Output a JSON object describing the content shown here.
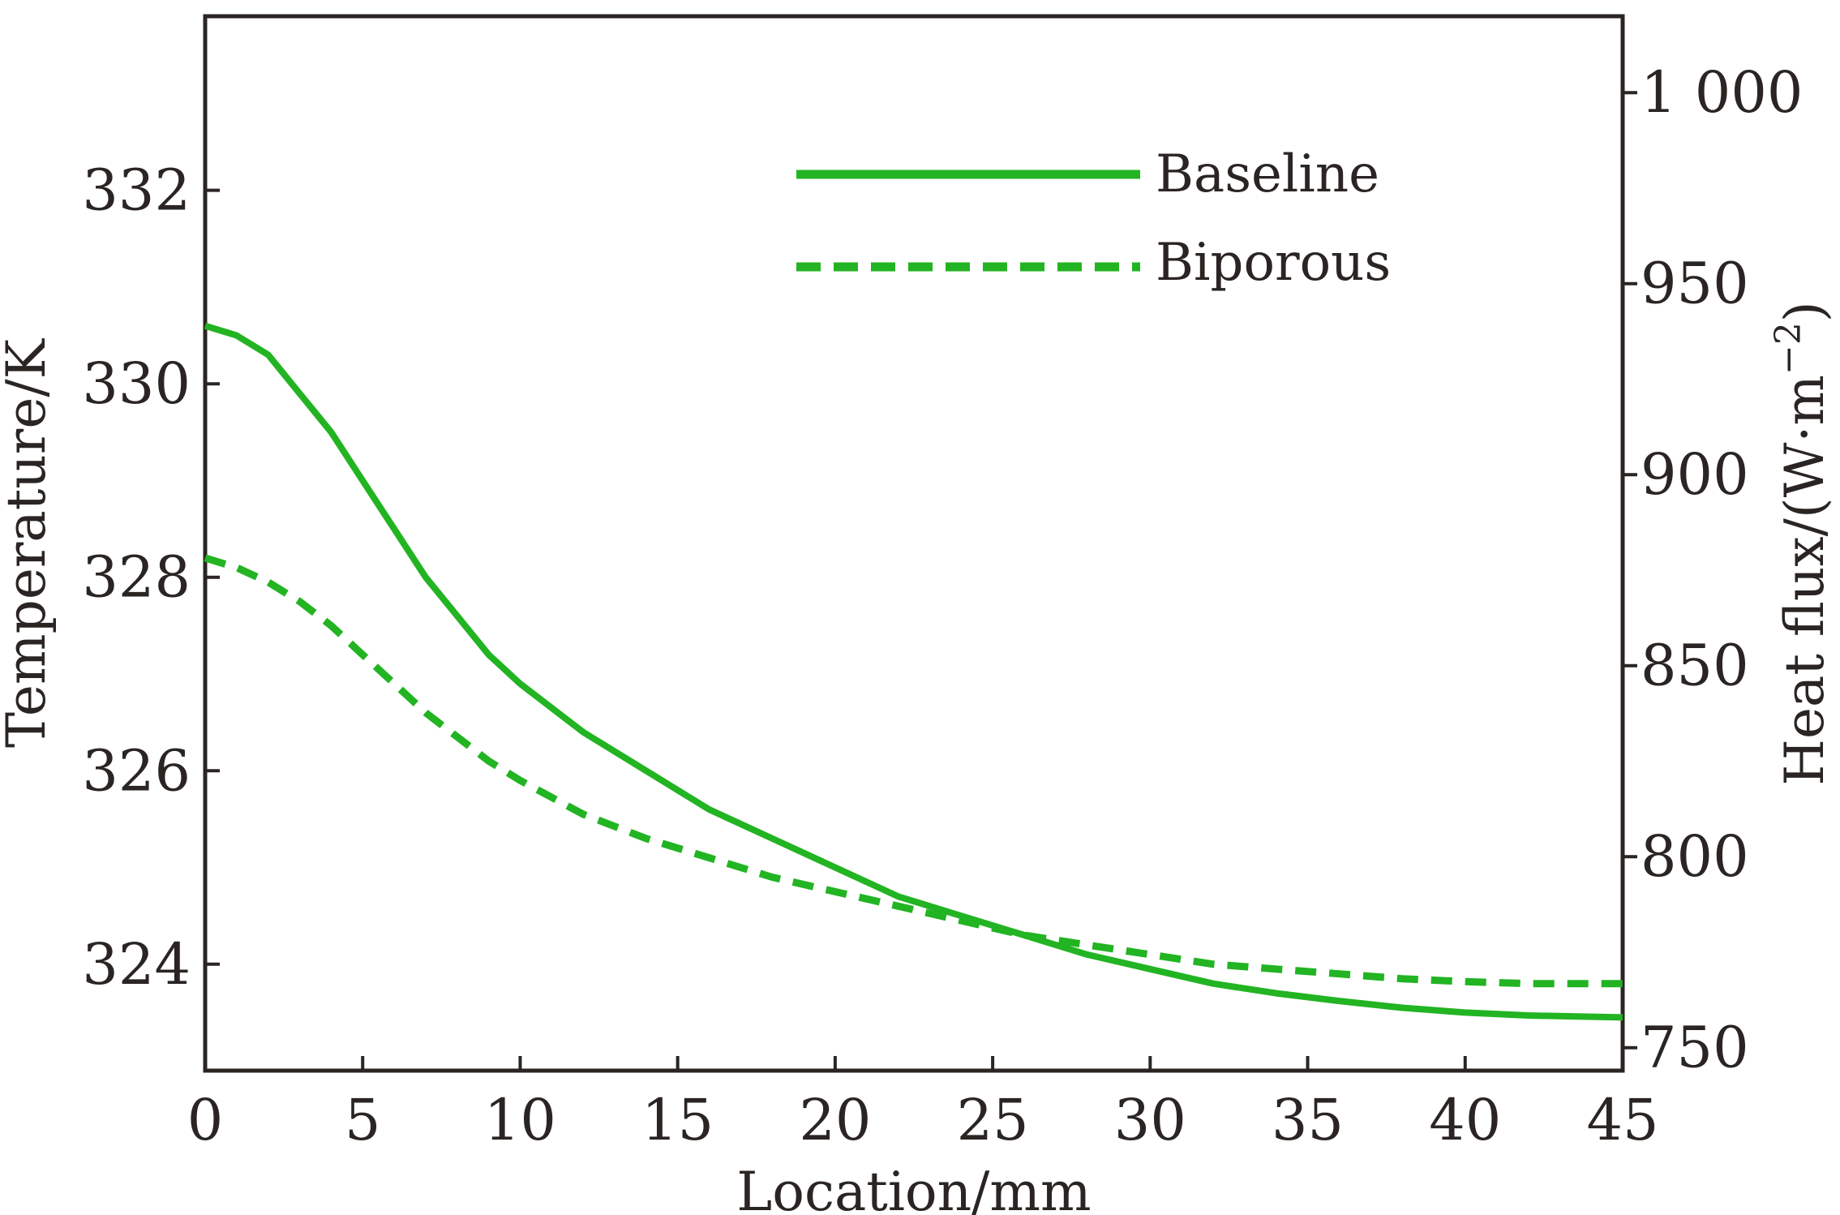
{
  "chart_data": {
    "type": "line",
    "xlabel": "Location/mm",
    "ylabel": "Temperature/K",
    "y2label": "Heat flux/(W·m",
    "y2label_sup": "−2",
    "y2label_end": ")",
    "xlim": [
      0,
      45
    ],
    "ylim": [
      322.9,
      333.8
    ],
    "y2lim": [
      744,
      1020
    ],
    "x_ticks": [
      0,
      5,
      10,
      15,
      20,
      25,
      30,
      35,
      40,
      45
    ],
    "x_tick_labels": [
      "0",
      "5",
      "10",
      "15",
      "20",
      "25",
      "30",
      "35",
      "40",
      "45"
    ],
    "y_ticks": [
      324,
      326,
      328,
      330,
      332
    ],
    "y_tick_labels": [
      "324",
      "326",
      "328",
      "330",
      "332"
    ],
    "y2_ticks": [
      750,
      800,
      850,
      900,
      950,
      1000
    ],
    "y2_tick_labels": [
      "750",
      "800",
      "850",
      "900",
      "950",
      "1 000"
    ],
    "grid": false,
    "legend_position": "top-right",
    "colors": {
      "series": "#22b422",
      "axis": "#2a2523"
    },
    "series": [
      {
        "name": "Baseline",
        "style": "solid",
        "x": [
          0,
          1,
          2,
          3,
          4,
          5,
          6,
          7,
          8,
          9,
          10,
          12,
          14,
          16,
          18,
          20,
          22,
          24,
          26,
          28,
          30,
          32,
          34,
          36,
          38,
          40,
          42,
          45
        ],
        "y": [
          330.6,
          330.5,
          330.3,
          329.9,
          329.5,
          329.0,
          328.5,
          328.0,
          327.6,
          327.2,
          326.9,
          326.4,
          326.0,
          325.6,
          325.3,
          325.0,
          324.7,
          324.5,
          324.3,
          324.1,
          323.95,
          323.8,
          323.7,
          323.62,
          323.55,
          323.5,
          323.47,
          323.45
        ]
      },
      {
        "name": "Biporous",
        "style": "dashed",
        "x": [
          0,
          1,
          2,
          3,
          4,
          5,
          6,
          7,
          8,
          9,
          10,
          12,
          14,
          16,
          18,
          20,
          22,
          24,
          26,
          28,
          30,
          32,
          34,
          36,
          38,
          40,
          42,
          45
        ],
        "y": [
          328.2,
          328.1,
          327.95,
          327.75,
          327.5,
          327.2,
          326.9,
          326.6,
          326.35,
          326.1,
          325.9,
          325.55,
          325.3,
          325.1,
          324.9,
          324.75,
          324.6,
          324.45,
          324.3,
          324.2,
          324.1,
          324.0,
          323.95,
          323.9,
          323.85,
          323.82,
          323.8,
          323.8
        ]
      }
    ]
  }
}
